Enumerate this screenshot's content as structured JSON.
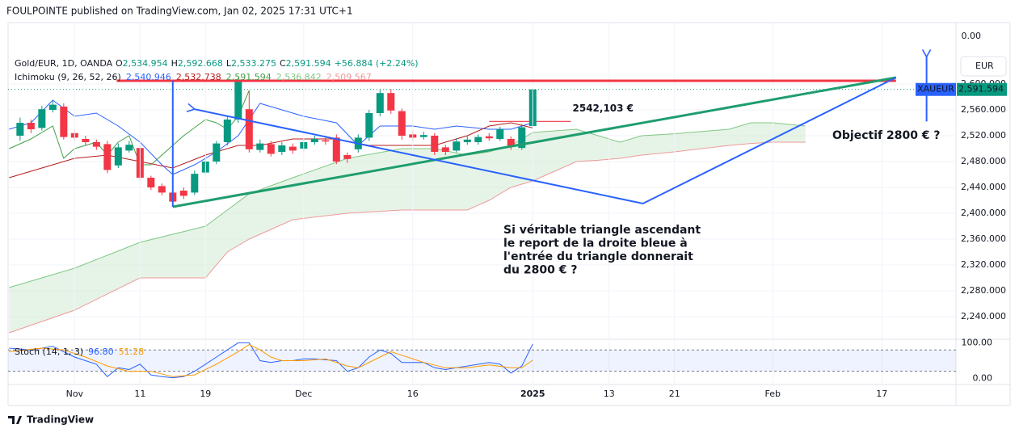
{
  "header": "FOULPOINTE published on TradingView.com, Jan 02, 2025 17:31 UTC+1",
  "footer": "TradingView",
  "chart_data": {
    "type": "candlestick",
    "symbol": "Gold/EUR, 1D, OANDA",
    "ohlc_labels": [
      "O",
      "H",
      "L",
      "C"
    ],
    "ohlc_values": [
      "2,534.954",
      "2,592.668",
      "2,533.275",
      "2,591.594"
    ],
    "change": "+56.884 (+2.24%)",
    "currency": "EUR",
    "top_scale_label": "0.00",
    "ticker": "XAUEUR",
    "last_price_label": "2,591.594",
    "up_color": "#089981",
    "down_color": "#f23645",
    "xlim": [
      -6.1,
      80.8
    ],
    "xticks": [
      {
        "value": 0,
        "label": "Nov"
      },
      {
        "value": 6,
        "label": "11"
      },
      {
        "value": 12,
        "label": "19"
      },
      {
        "value": 21,
        "label": "Dec"
      },
      {
        "value": 31,
        "label": "16"
      },
      {
        "value": 42,
        "label": "2025"
      },
      {
        "value": 49,
        "label": "13"
      },
      {
        "value": 55,
        "label": "21"
      },
      {
        "value": 64,
        "label": "Feb"
      },
      {
        "value": 74,
        "label": "17"
      }
    ],
    "ylim": [
      2205,
      2695
    ],
    "yticks": [
      {
        "value": 2600,
        "label": "2,600.000"
      },
      {
        "value": 2560,
        "label": "2,560.000"
      },
      {
        "value": 2520,
        "label": "2,520.000"
      },
      {
        "value": 2480,
        "label": "2,480.000"
      },
      {
        "value": 2440,
        "label": "2,440.000"
      },
      {
        "value": 2400,
        "label": "2,400.000"
      },
      {
        "value": 2360,
        "label": "2,360.000"
      },
      {
        "value": 2320,
        "label": "2,320.000"
      },
      {
        "value": 2280,
        "label": "2,280.000"
      },
      {
        "value": 2240,
        "label": "2,240.000"
      }
    ],
    "candles": {
      "x": [
        -5,
        -4,
        -3,
        -2,
        -1,
        0,
        1,
        2,
        3,
        4,
        5,
        6,
        7,
        8,
        9,
        10,
        11,
        12,
        13,
        14,
        15,
        16,
        17,
        18,
        19,
        20,
        21,
        22,
        23,
        24,
        25,
        26,
        27,
        28,
        29,
        30,
        31,
        32,
        33,
        34,
        35,
        36,
        37,
        38,
        39,
        40,
        41,
        42
      ],
      "open": [
        2520,
        2540,
        2532,
        2560,
        2565,
        2524,
        2515,
        2510,
        2507,
        2474,
        2497,
        2501,
        2455,
        2442,
        2432,
        2435,
        2432,
        2463,
        2480,
        2510,
        2545,
        2561,
        2498,
        2507,
        2495,
        2503,
        2500,
        2510,
        2513,
        2517,
        2490,
        2499,
        2517,
        2555,
        2586,
        2558,
        2522,
        2518,
        2520,
        2502,
        2497,
        2510,
        2510,
        2519,
        2515,
        2515,
        2501,
        2534.954
      ],
      "high": [
        2548,
        2545,
        2566,
        2575,
        2570,
        2530,
        2520,
        2514,
        2512,
        2508,
        2512,
        2505,
        2458,
        2446,
        2436,
        2440,
        2466,
        2488,
        2512,
        2550,
        2610,
        2590,
        2514,
        2512,
        2510,
        2508,
        2516,
        2520,
        2518,
        2522,
        2494,
        2522,
        2560,
        2592,
        2592,
        2562,
        2528,
        2526,
        2524,
        2506,
        2516,
        2519,
        2522,
        2524,
        2534,
        2519,
        2538,
        2592.668
      ],
      "low": [
        2512,
        2524,
        2528,
        2556,
        2514,
        2512,
        2505,
        2498,
        2462,
        2470,
        2494,
        2450,
        2436,
        2428,
        2410,
        2422,
        2428,
        2460,
        2476,
        2505,
        2540,
        2494,
        2494,
        2488,
        2490,
        2492,
        2496,
        2506,
        2506,
        2476,
        2478,
        2494,
        2512,
        2550,
        2554,
        2514,
        2512,
        2514,
        2490,
        2490,
        2494,
        2506,
        2506,
        2512,
        2512,
        2498,
        2498,
        2533.275
      ],
      "close": [
        2540,
        2530,
        2561,
        2568,
        2518,
        2517,
        2510,
        2503,
        2467,
        2502,
        2506,
        2455,
        2440,
        2432,
        2418,
        2427,
        2461,
        2480,
        2508,
        2545,
        2605,
        2499,
        2508,
        2492,
        2505,
        2497,
        2510,
        2515,
        2511,
        2480,
        2484,
        2517,
        2555,
        2586,
        2559,
        2520,
        2517,
        2521,
        2495,
        2495,
        2511,
        2514,
        2518,
        2516,
        2530,
        2503,
        2533,
        2591.594
      ]
    },
    "ichimoku": {
      "title": "Ichimoku (9, 26, 52, 26)",
      "legend_values": [
        "2,540.946",
        "2,532.738",
        "2,591.594",
        "2,536.842",
        "2,509.567"
      ],
      "cloud_color": "#c8e6c9",
      "series": [
        {
          "color": "#2962ff",
          "x": [
            -6,
            -4,
            -2,
            0,
            2,
            4,
            6,
            8,
            9,
            11,
            13,
            15,
            17,
            19,
            21,
            24,
            26,
            27,
            28,
            31,
            33,
            35,
            38,
            40,
            42
          ],
          "values": [
            2530,
            2540,
            2575,
            2550,
            2555,
            2535,
            2510,
            2475,
            2460,
            2475,
            2495,
            2520,
            2570,
            2560,
            2550,
            2540,
            2505,
            2520,
            2535,
            2535,
            2530,
            2535,
            2530,
            2530,
            2540
          ]
        },
        {
          "color": "#b71c1c",
          "x": [
            -6,
            -3,
            0,
            3,
            6,
            9,
            12,
            15,
            17,
            20,
            24,
            27,
            30,
            33,
            36,
            38,
            40,
            42
          ],
          "values": [
            2455,
            2470,
            2485,
            2490,
            2480,
            2470,
            2490,
            2505,
            2505,
            2515,
            2515,
            2505,
            2505,
            2505,
            2520,
            2535,
            2540,
            2532
          ]
        },
        {
          "color": "#43a047",
          "x": [
            -6,
            -4,
            -2,
            -1,
            0,
            2,
            3,
            4,
            5,
            6,
            7,
            8,
            10,
            12,
            13,
            14,
            15,
            16
          ],
          "values": [
            2500,
            2515,
            2535,
            2485,
            2500,
            2510,
            2490,
            2510,
            2520,
            2475,
            2475,
            2490,
            2520,
            2545,
            2540,
            2530,
            2550,
            2590
          ]
        },
        {
          "color": "#81c784",
          "x": [
            -6,
            0,
            6,
            12,
            14,
            16,
            20,
            25,
            30,
            33,
            36,
            38,
            40,
            42,
            46,
            48,
            50,
            52,
            55,
            60,
            62,
            64,
            67
          ],
          "values": [
            2285,
            2315,
            2355,
            2380,
            2405,
            2430,
            2455,
            2485,
            2500,
            2500,
            2490,
            2495,
            2505,
            2525,
            2530,
            2520,
            2510,
            2520,
            2523,
            2530,
            2540,
            2540,
            2535
          ]
        },
        {
          "color": "#ef9a9a",
          "x": [
            -6,
            0,
            6,
            12,
            14,
            16,
            20,
            25,
            30,
            33,
            36,
            38,
            40,
            42,
            46,
            48,
            50,
            52,
            55,
            60,
            62,
            64,
            67
          ],
          "values": [
            2215,
            2250,
            2300,
            2300,
            2340,
            2360,
            2390,
            2400,
            2405,
            2405,
            2405,
            2420,
            2440,
            2450,
            2480,
            2482,
            2485,
            2490,
            2495,
            2505,
            2508,
            2510,
            2510
          ]
        }
      ]
    },
    "level": {
      "value": 2542.103,
      "label": "2542,103 €",
      "x": [
        38,
        45.5
      ],
      "color": "#f23645"
    },
    "drawings": [
      {
        "color": "#f23645",
        "x": [
          3.85,
          75.3
        ],
        "values": [
          2605,
          2605
        ]
      },
      {
        "color": "#1f9d6f",
        "x": [
          9,
          75.3
        ],
        "values": [
          2410,
          2610
        ]
      },
      {
        "color": "#2962ff",
        "x": [
          9,
          9
        ],
        "values": [
          2605,
          2410
        ]
      },
      {
        "color": "#2962ff",
        "x": [
          11,
          52.1,
          75.3
        ],
        "values": [
          2561,
          2415,
          2610
        ],
        "arrow": "start"
      },
      {
        "color": "#2962ff",
        "x": [
          78.1,
          78.1
        ],
        "values": [
          2542,
          2642
        ],
        "arrow": "end"
      }
    ],
    "annotations": [
      {
        "lines": [
          "Objectif 2800 € ?"
        ],
        "x": 1030,
        "y": 168
      },
      {
        "lines": [
          "Si véritable triangle ascendant",
          "le report de la droite bleue à",
          "l'entrée du triangle donnerait",
          "du 2800 € ?"
        ],
        "x": 623,
        "y": 285
      }
    ],
    "stoch": {
      "title": "Stoch (14, 1, 3)",
      "legend_values": [
        "96.80",
        "51.28"
      ],
      "ylim": [
        -17,
        110
      ],
      "yticks": [
        {
          "value": 100,
          "label": "100.00"
        },
        {
          "value": 0,
          "label": "0.00"
        }
      ],
      "bands": [
        20,
        80
      ],
      "series": [
        {
          "color": "#2962ff",
          "x": [
            -6,
            -4,
            -2,
            -1,
            0,
            1,
            2,
            3,
            4,
            5,
            6,
            7,
            8,
            9,
            10,
            11,
            12,
            13,
            14,
            15,
            16,
            17,
            18,
            19,
            20,
            21,
            22,
            24,
            25,
            26,
            27,
            28,
            29,
            30,
            31,
            32,
            33,
            34,
            35,
            36,
            38,
            39,
            40,
            41,
            42
          ],
          "values": [
            85,
            80,
            90,
            75,
            60,
            50,
            40,
            5,
            30,
            25,
            40,
            10,
            5,
            2,
            5,
            20,
            40,
            60,
            80,
            100,
            100,
            50,
            45,
            50,
            50,
            55,
            55,
            50,
            20,
            30,
            60,
            80,
            70,
            45,
            45,
            45,
            30,
            25,
            30,
            35,
            45,
            40,
            15,
            35,
            96.8
          ]
        },
        {
          "color": "#ff9800",
          "x": [
            -6,
            -3,
            -1,
            1,
            3,
            5,
            7,
            9,
            11,
            13,
            15,
            16,
            17,
            18,
            19,
            21,
            23,
            25,
            26,
            28,
            29,
            30,
            32,
            34,
            36,
            38,
            40,
            41,
            42
          ],
          "values": [
            75,
            85,
            80,
            60,
            35,
            20,
            20,
            5,
            10,
            40,
            75,
            95,
            80,
            60,
            50,
            50,
            55,
            35,
            30,
            60,
            75,
            65,
            45,
            30,
            30,
            38,
            30,
            30,
            51.28
          ]
        }
      ]
    }
  }
}
